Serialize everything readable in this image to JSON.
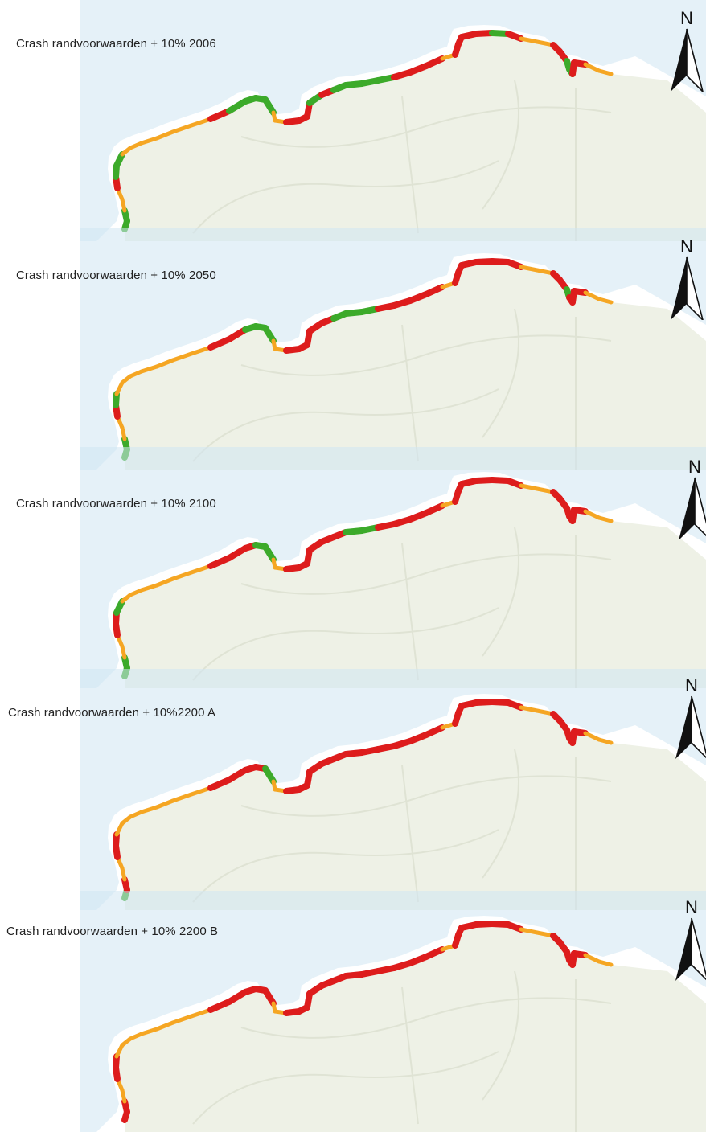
{
  "panels": [
    {
      "title": "Crash randvoorwaarden + 10% 2006"
    },
    {
      "title": "Crash randvoorwaarden + 10% 2050"
    },
    {
      "title": "Crash randvoorwaarden + 10% 2100"
    },
    {
      "title": "Crash randvoorwaarden + 10%2200 A"
    },
    {
      "title": "Crash randvoorwaarden + 10% 2200 B"
    }
  ],
  "north_arrow": {
    "label": "N"
  },
  "colors": {
    "red": "#dd1c1c",
    "orange": "#f5a623",
    "green": "#3caa2a",
    "sea": "#cfe6f3",
    "land": "#eef1e6"
  },
  "segments_per_panel": [
    [
      "green",
      "green",
      "orange",
      "orange",
      "red",
      "green",
      "green",
      "orange",
      "orange",
      "orange",
      "orange",
      "orange",
      "orange",
      "red",
      "green",
      "green",
      "green",
      "green",
      "orange",
      "orange",
      "red",
      "red",
      "red",
      "green",
      "red",
      "green",
      "green",
      "green",
      "green",
      "red",
      "red",
      "red",
      "orange",
      "red",
      "red",
      "red",
      "red",
      "green",
      "red",
      "orange",
      "orange",
      "red",
      "red",
      "green",
      "green",
      "red",
      "red",
      "orange"
    ],
    [
      "green",
      "green",
      "orange",
      "orange",
      "red",
      "green",
      "orange",
      "orange",
      "orange",
      "orange",
      "orange",
      "orange",
      "orange",
      "red",
      "red",
      "green",
      "green",
      "green",
      "orange",
      "orange",
      "red",
      "red",
      "red",
      "red",
      "red",
      "green",
      "green",
      "green",
      "red",
      "red",
      "red",
      "red",
      "orange",
      "red",
      "red",
      "red",
      "red",
      "red",
      "red",
      "orange",
      "orange",
      "red",
      "red",
      "green",
      "red",
      "red",
      "red",
      "orange"
    ],
    [
      "green",
      "green",
      "orange",
      "orange",
      "red",
      "red",
      "green",
      "orange",
      "orange",
      "orange",
      "orange",
      "orange",
      "orange",
      "red",
      "red",
      "red",
      "green",
      "green",
      "orange",
      "orange",
      "red",
      "red",
      "red",
      "red",
      "red",
      "red",
      "green",
      "green",
      "red",
      "red",
      "red",
      "red",
      "orange",
      "red",
      "red",
      "red",
      "red",
      "red",
      "red",
      "orange",
      "orange",
      "red",
      "red",
      "red",
      "red",
      "red",
      "red",
      "orange"
    ],
    [
      "green",
      "red",
      "orange",
      "orange",
      "red",
      "red",
      "orange",
      "orange",
      "orange",
      "orange",
      "orange",
      "orange",
      "orange",
      "red",
      "red",
      "red",
      "red",
      "green",
      "orange",
      "orange",
      "red",
      "red",
      "red",
      "red",
      "red",
      "red",
      "red",
      "red",
      "red",
      "red",
      "red",
      "red",
      "orange",
      "red",
      "red",
      "red",
      "red",
      "red",
      "red",
      "orange",
      "orange",
      "red",
      "red",
      "red",
      "red",
      "red",
      "red",
      "orange"
    ],
    [
      "red",
      "red",
      "orange",
      "orange",
      "red",
      "red",
      "orange",
      "orange",
      "orange",
      "orange",
      "orange",
      "orange",
      "orange",
      "red",
      "red",
      "red",
      "red",
      "red",
      "orange",
      "orange",
      "red",
      "red",
      "red",
      "red",
      "red",
      "red",
      "red",
      "red",
      "red",
      "red",
      "red",
      "red",
      "orange",
      "red",
      "red",
      "red",
      "red",
      "red",
      "red",
      "orange",
      "orange",
      "red",
      "red",
      "red",
      "red",
      "red",
      "red",
      "orange"
    ]
  ]
}
